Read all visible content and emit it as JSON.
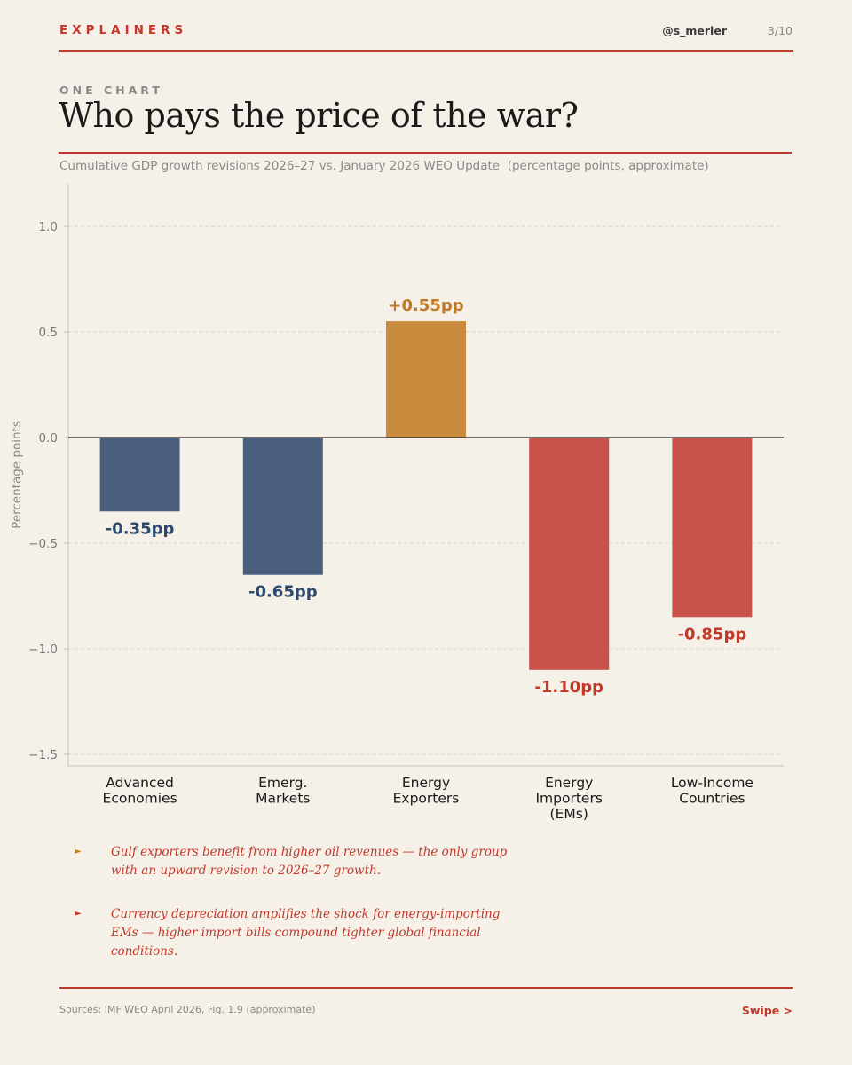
{
  "header": {
    "brand": "EXPLAINERS",
    "handle": "@s_merler",
    "page": "3/10"
  },
  "kicker": "ONE CHART",
  "title": "Who pays the price of the war?",
  "subtitle": "Cumulative GDP growth revisions 2026–27 vs. January 2026 WEO Update  (percentage points, approximate)",
  "chart_data": {
    "type": "bar",
    "categories": [
      [
        "Advanced",
        "Economies"
      ],
      [
        "Emerg.",
        "Markets"
      ],
      [
        "Energy",
        "Exporters"
      ],
      [
        "Energy",
        "Importers",
        "(EMs)"
      ],
      [
        "Low-Income",
        "Countries"
      ]
    ],
    "values": [
      -0.35,
      -0.65,
      0.55,
      -1.1,
      -0.85
    ],
    "data_labels": [
      "-0.35pp",
      "-0.65pp",
      "+0.55pp",
      "-1.10pp",
      "-0.85pp"
    ],
    "bar_colors": [
      "#4a5f7e",
      "#4a5f7e",
      "#c98b3e",
      "#c9534a",
      "#c9534a"
    ],
    "label_colors": [
      "#2c4a6e",
      "#2c4a6e",
      "#c07a28",
      "#c0392b",
      "#c0392b"
    ],
    "ylabel": "Percentage points",
    "ylim": [
      -1.55,
      1.2
    ],
    "yticks": [
      1.0,
      0.5,
      0.0,
      -0.5,
      -1.0,
      -1.5
    ],
    "ytick_labels": [
      "1.0",
      "0.5",
      "0.0",
      "−0.5",
      "−1.0",
      "−1.5"
    ],
    "grid": true
  },
  "notes": [
    {
      "text": "Gulf exporters benefit from higher oil revenues — the only group with an upward revision to 2026–27 growth.",
      "bullet_color": "#c07a28"
    },
    {
      "text": "Currency depreciation amplifies the shock for energy-importing EMs — higher import bills compound tighter global financial conditions.",
      "bullet_color": "#c0392b"
    }
  ],
  "footer": {
    "sources": "Sources: IMF WEO April 2026, Fig. 1.9 (approximate)",
    "swipe": "Swipe >"
  },
  "colors": {
    "accent": "#c0392b",
    "background": "#f5f0e8"
  }
}
